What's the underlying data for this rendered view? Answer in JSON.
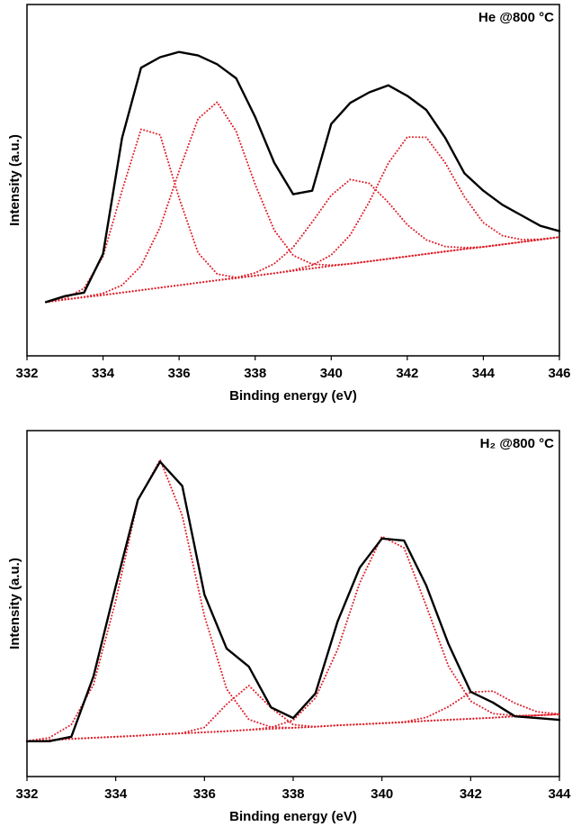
{
  "chart_data": [
    {
      "type": "line",
      "annotation": "He @800 °C",
      "xlabel": "Binding energy (eV)",
      "ylabel": "Intensity (a.u.)",
      "x": [
        332.5,
        333,
        333.5,
        334,
        334.5,
        335,
        335.5,
        336,
        336.5,
        337,
        337.5,
        338,
        338.5,
        339,
        339.5,
        340,
        340.5,
        341,
        341.5,
        342,
        342.5,
        343,
        343.5,
        344,
        344.5,
        345,
        345.5,
        346
      ],
      "xlim": [
        332,
        346
      ],
      "xticks": [
        332,
        334,
        336,
        338,
        340,
        342,
        344,
        346
      ],
      "ylim": [
        0,
        100
      ],
      "series": [
        {
          "color": "#e0202a",
          "style": "dotted",
          "values": [
            15.3,
            16.0,
            16.7,
            17.3,
            18.0,
            18.7,
            19.4,
            20.1,
            20.8,
            21.5,
            22.1,
            22.8,
            23.5,
            24.2,
            24.9,
            25.6,
            26.2,
            26.9,
            27.6,
            28.3,
            29.0,
            29.7,
            30.4,
            31.0,
            31.7,
            32.4,
            33.1,
            33.8
          ]
        },
        {
          "color": "#e0202a",
          "style": "dotted",
          "values": [
            15.3,
            16.3,
            19.2,
            28.3,
            47.0,
            64.5,
            62.9,
            44.9,
            29.3,
            23.3,
            22.3,
            22.8,
            23.5,
            24.2,
            24.9,
            25.6,
            26.2,
            26.9,
            27.6,
            28.3,
            29.0,
            29.7,
            30.4,
            31.0,
            31.7,
            32.4,
            33.1,
            33.8
          ]
        },
        {
          "color": "#e0202a",
          "style": "dotted",
          "values": [
            15.3,
            16.0,
            16.8,
            17.8,
            20.1,
            25.6,
            36.6,
            52.6,
            67.5,
            72.2,
            63.9,
            48.8,
            35.8,
            28.6,
            26.1,
            25.8,
            26.2,
            26.9,
            27.6,
            28.3,
            29.0,
            29.7,
            30.4,
            31.0,
            31.7,
            32.4,
            33.1,
            33.8
          ]
        },
        {
          "color": "#e0202a",
          "style": "dotted",
          "values": [
            15.3,
            16.0,
            16.7,
            17.3,
            18.0,
            18.7,
            19.4,
            20.1,
            20.8,
            21.5,
            22.3,
            23.6,
            26.2,
            30.9,
            38.1,
            45.7,
            50.2,
            49.1,
            43.7,
            37.3,
            33.0,
            31.1,
            30.8,
            31.0,
            31.7,
            32.4,
            33.1,
            33.8
          ]
        },
        {
          "color": "#e0202a",
          "style": "dotted",
          "values": [
            15.3,
            16.0,
            16.7,
            17.3,
            18.0,
            18.7,
            19.4,
            20.1,
            20.8,
            21.5,
            22.1,
            22.8,
            23.5,
            24.4,
            25.8,
            28.7,
            34.4,
            43.8,
            54.8,
            62.3,
            62.2,
            54.9,
            45.3,
            37.9,
            34.2,
            33.1,
            33.2,
            33.8
          ]
        },
        {
          "color": "#000000",
          "style": "solid",
          "values": [
            15.3,
            17,
            18,
            29,
            62,
            82,
            85,
            86.5,
            85.5,
            83,
            79,
            68,
            55,
            46,
            47,
            66,
            72,
            75,
            77,
            74,
            70,
            62,
            52,
            47,
            43,
            40,
            37,
            35.5
          ]
        }
      ]
    },
    {
      "type": "line",
      "annotation": "H₂ @800 °C",
      "xlabel": "Binding energy (eV)",
      "ylabel": "Intensity (a.u.)",
      "x": [
        332,
        332.5,
        333,
        333.5,
        334,
        334.5,
        335,
        335.5,
        336,
        336.5,
        337,
        337.5,
        338,
        338.5,
        339,
        339.5,
        340,
        340.5,
        341,
        341.5,
        342,
        342.5,
        343,
        343.5,
        344
      ],
      "xlim": [
        332,
        344
      ],
      "xticks": [
        332,
        334,
        336,
        338,
        340,
        342,
        344
      ],
      "ylim": [
        0,
        100
      ],
      "series": [
        {
          "color": "#e0202a",
          "style": "dotted",
          "values": [
            10.2,
            10.5,
            10.9,
            11.2,
            11.5,
            11.8,
            12.2,
            12.5,
            12.8,
            13.1,
            13.5,
            13.8,
            14.1,
            14.4,
            14.8,
            15.1,
            15.4,
            15.7,
            16.1,
            16.4,
            16.7,
            17.0,
            17.4,
            17.7,
            18.0
          ]
        },
        {
          "color": "#e0202a",
          "style": "dotted",
          "values": [
            10.3,
            11.2,
            15.0,
            26.6,
            50.8,
            79.8,
            91.6,
            75.4,
            46.4,
            25.3,
            16.5,
            14.3,
            14.1,
            14.4,
            14.8,
            15.1,
            15.4,
            15.7,
            16.1,
            16.4,
            16.7,
            17.0,
            17.4,
            17.7,
            18.0
          ]
        },
        {
          "color": "#e0202a",
          "style": "dotted",
          "values": [
            10.2,
            10.5,
            10.9,
            11.2,
            11.5,
            11.8,
            12.2,
            12.6,
            14.2,
            20.9,
            26.3,
            19.9,
            15.0,
            14.4,
            14.8,
            15.1,
            15.4,
            15.7,
            16.1,
            16.4,
            16.7,
            17.0,
            17.4,
            17.7,
            18.0
          ]
        },
        {
          "color": "#e0202a",
          "style": "dotted",
          "values": [
            10.2,
            10.5,
            10.9,
            11.2,
            11.5,
            11.8,
            12.2,
            12.5,
            12.8,
            13.1,
            13.5,
            14.2,
            16.3,
            22.7,
            36.7,
            56.0,
            69.4,
            66.1,
            49.3,
            31.9,
            21.8,
            18.2,
            17.6,
            17.7,
            18.0
          ]
        },
        {
          "color": "#e0202a",
          "style": "dotted",
          "values": [
            10.2,
            10.5,
            10.9,
            11.2,
            11.5,
            11.8,
            12.2,
            12.5,
            12.8,
            13.1,
            13.5,
            13.8,
            14.1,
            14.4,
            14.8,
            15.1,
            15.4,
            15.8,
            17.1,
            20.2,
            24.4,
            24.7,
            21.2,
            18.7,
            18.1
          ]
        },
        {
          "color": "#000000",
          "style": "solid",
          "values": [
            10.2,
            10.2,
            11.5,
            29,
            55,
            80,
            91,
            84,
            52.6,
            37,
            31.8,
            20,
            16.9,
            24,
            44.8,
            60.4,
            68.8,
            68.2,
            55.2,
            38.3,
            24.5,
            21.4,
            17.4,
            16.9,
            16.4
          ]
        }
      ]
    }
  ]
}
